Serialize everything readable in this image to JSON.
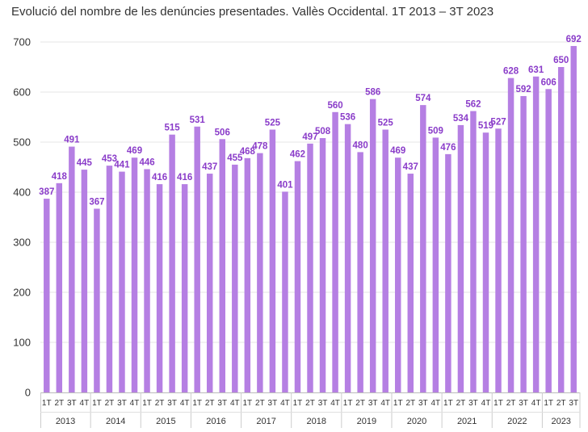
{
  "chart_data": {
    "type": "bar",
    "title": "Evolució del nombre de les denúncies presentades. Vallès Occidental. 1T 2013 – 3T 2023",
    "xlabel": "",
    "ylabel": "",
    "ylim": [
      0,
      700
    ],
    "yticks": [
      0,
      100,
      200,
      300,
      400,
      500,
      600,
      700
    ],
    "grid": true,
    "bar_color": "#b57fe3",
    "label_color": "#8a3cc9",
    "groups": [
      {
        "year": "2013",
        "quarters": [
          "1T",
          "2T",
          "3T",
          "4T"
        ]
      },
      {
        "year": "2014",
        "quarters": [
          "1T",
          "2T",
          "3T",
          "4T"
        ]
      },
      {
        "year": "2015",
        "quarters": [
          "1T",
          "2T",
          "3T",
          "4T"
        ]
      },
      {
        "year": "2016",
        "quarters": [
          "1T",
          "2T",
          "3T",
          "4T"
        ]
      },
      {
        "year": "2017",
        "quarters": [
          "1T",
          "2T",
          "3T",
          "4T"
        ]
      },
      {
        "year": "2018",
        "quarters": [
          "1T",
          "2T",
          "3T",
          "4T"
        ]
      },
      {
        "year": "2019",
        "quarters": [
          "1T",
          "2T",
          "3T",
          "4T"
        ]
      },
      {
        "year": "2020",
        "quarters": [
          "1T",
          "2T",
          "3T",
          "4T"
        ]
      },
      {
        "year": "2021",
        "quarters": [
          "1T",
          "2T",
          "3T",
          "4T"
        ]
      },
      {
        "year": "2022",
        "quarters": [
          "1T",
          "2T",
          "3T",
          "4T"
        ]
      },
      {
        "year": "2023",
        "quarters": [
          "1T",
          "2T",
          "3T"
        ]
      }
    ],
    "values": [
      387,
      418,
      491,
      445,
      367,
      453,
      441,
      469,
      446,
      416,
      515,
      416,
      531,
      437,
      506,
      455,
      468,
      478,
      525,
      401,
      462,
      497,
      508,
      560,
      536,
      480,
      586,
      525,
      469,
      437,
      574,
      509,
      476,
      534,
      562,
      519,
      527,
      628,
      592,
      631,
      606,
      650,
      692
    ]
  }
}
